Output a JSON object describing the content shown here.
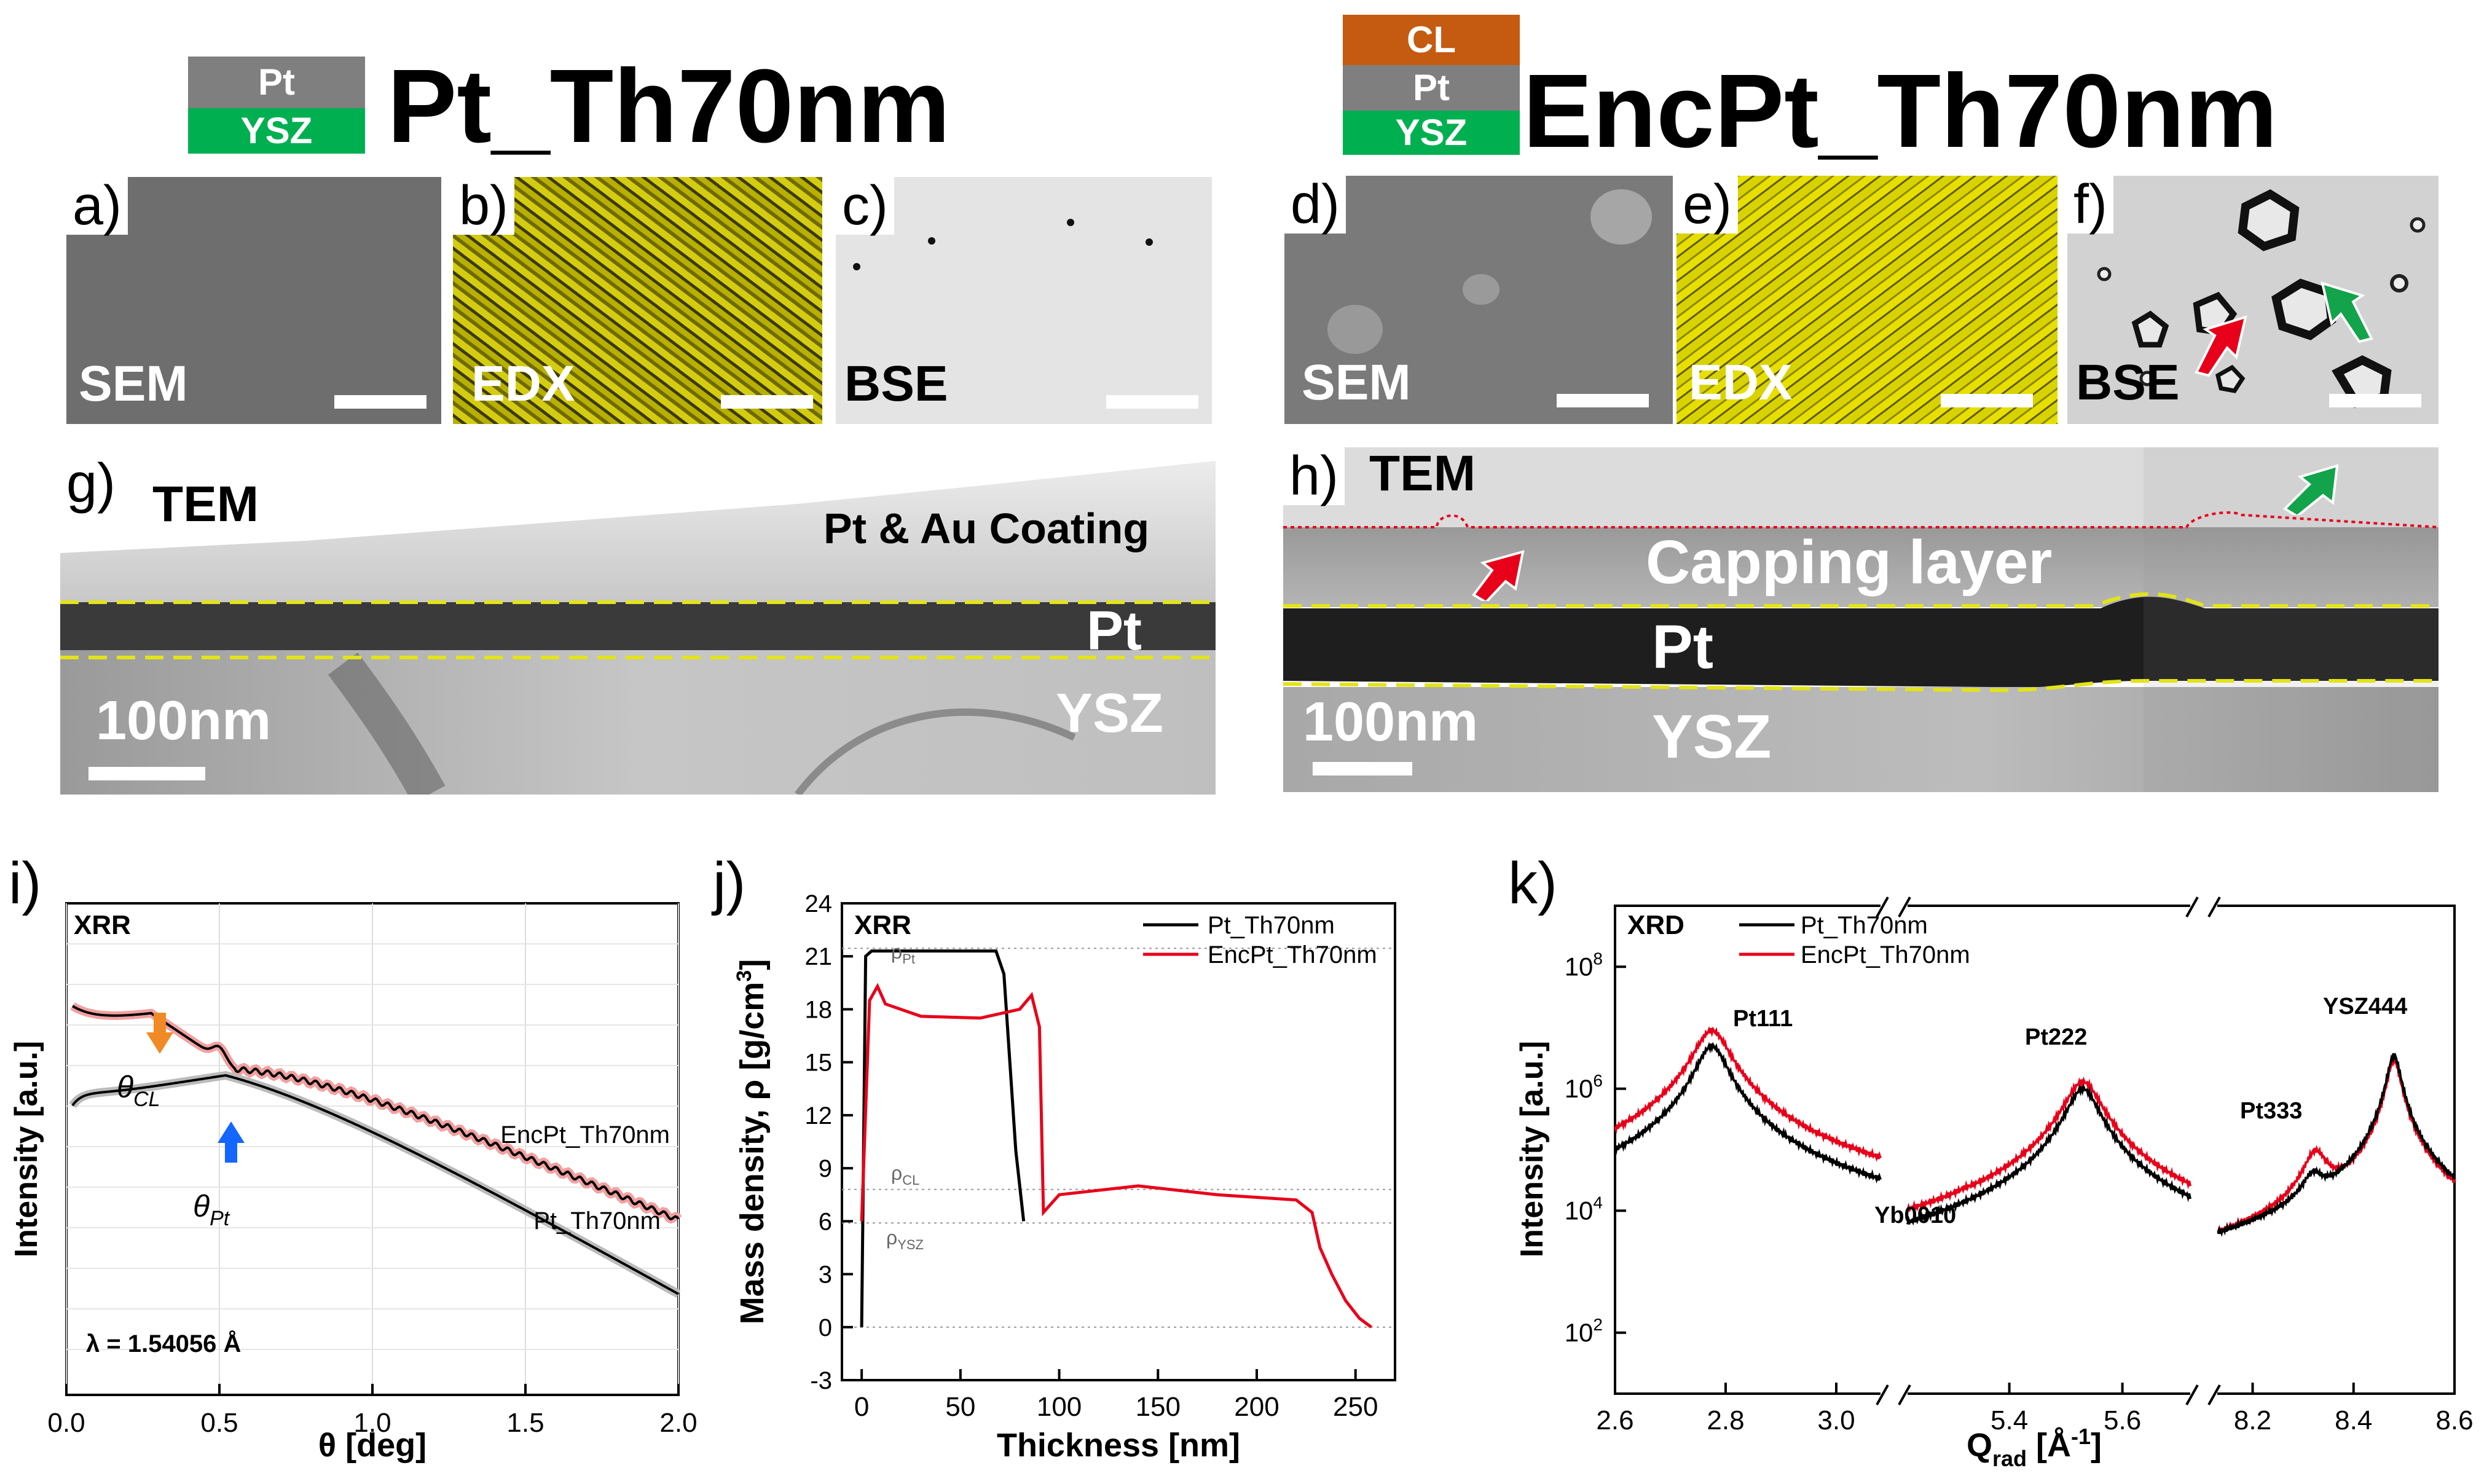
{
  "colors": {
    "pt_gray": "#7f7f7f",
    "ysz_green": "#00b050",
    "cl_orange": "#c55a11",
    "edx_yellow": "#c8c200",
    "red": "#e8001a",
    "green": "#12a34b",
    "black": "#000000",
    "guide": "#e3e31a"
  },
  "left_title": {
    "stack": [
      "Pt",
      "YSZ"
    ],
    "title": "Pt_Th70nm"
  },
  "right_title": {
    "stack": [
      "CL",
      "Pt",
      "YSZ"
    ],
    "title": "EncPt_Th70nm"
  },
  "panels": {
    "a": {
      "label": "a)",
      "tag": "SEM"
    },
    "b": {
      "label": "b)",
      "tag": "EDX"
    },
    "c": {
      "label": "c)",
      "tag": "BSE"
    },
    "d": {
      "label": "d)",
      "tag": "SEM"
    },
    "e": {
      "label": "e)",
      "tag": "EDX"
    },
    "f": {
      "label": "f)",
      "tag": "BSE"
    },
    "g": {
      "label": "g)",
      "tag": "TEM",
      "coating": "Pt & Au Coating",
      "pt": "Pt",
      "ysz": "YSZ",
      "scale": "100nm"
    },
    "h": {
      "label": "h)",
      "tag": "TEM",
      "capping": "Capping layer",
      "pt": "Pt",
      "ysz": "YSZ",
      "scale": "100nm"
    }
  },
  "chart_i": {
    "label": "i)",
    "title": "XRR",
    "ylabel": "Intensity [a.u.]",
    "xlabel": "θ [deg]",
    "xticks": [
      "0.0",
      "0.5",
      "1.0",
      "1.5",
      "2.0"
    ],
    "ann_cl": "θCL",
    "ann_cl_main": "θ",
    "ann_cl_sub": "CL",
    "ann_pt_main": "θ",
    "ann_pt_sub": "Pt",
    "series_enc": "EncPt_Th70nm",
    "series_pt": "Pt_Th70nm",
    "lambda": "λ = 1.54056 Å"
  },
  "chart_j": {
    "label": "j)",
    "title": "XRR",
    "ylabel": "Mass density, ρ [g/cm³]",
    "ylabel_main": "Mass density, ρ [g/cm",
    "ylabel_sup": "3",
    "ylabel_end": "]",
    "xlabel": "Thickness [nm]",
    "yticks": [
      "-3",
      "0",
      "3",
      "6",
      "9",
      "12",
      "15",
      "18",
      "21",
      "24"
    ],
    "xticks": [
      "0",
      "50",
      "100",
      "150",
      "200",
      "250"
    ],
    "legend": [
      "Pt_Th70nm",
      "EncPt_Th70nm"
    ],
    "ref_pt": "ρPt",
    "ref_cl": "ρCL",
    "ref_ysz": "ρYSZ",
    "rho": "ρ",
    "sub_pt": "Pt",
    "sub_cl": "CL",
    "sub_ysz": "YSZ"
  },
  "chart_k": {
    "label": "k)",
    "title": "XRD",
    "ylabel": "Intensity [a.u.]",
    "xlabel_main": "Q",
    "xlabel_sub": "rad",
    "xlabel_end": " [Å",
    "xlabel_sup": "-1",
    "xlabel_close": "]",
    "xticks": [
      "2.6",
      "2.8",
      "3.0",
      "5.4",
      "5.6",
      "8.2",
      "8.4",
      "8.6"
    ],
    "yticks_base": "10",
    "yticks_exp": [
      "2",
      "4",
      "6",
      "8"
    ],
    "legend": [
      "Pt_Th70nm",
      "EncPt_Th70nm"
    ],
    "peaks": [
      "Pt111",
      "Yb0010",
      "Pt222",
      "Pt333",
      "YSZ444"
    ]
  }
}
